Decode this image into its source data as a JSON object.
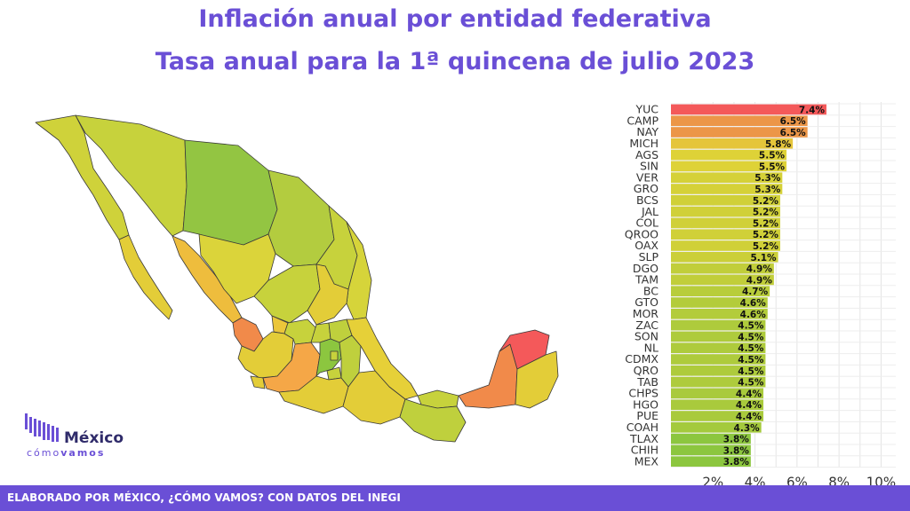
{
  "header": {
    "title": "Inflación anual por entidad federativa",
    "subtitle": "Tasa anual para la 1ª quincena de julio 2023"
  },
  "logo": {
    "name": "México",
    "sub_light": "cómo",
    "sub_bold": "vamos"
  },
  "footer": {
    "text": "ELABORADO POR MÉXICO, ¿CÓMO VAMOS? CON DATOS DEL INEGI"
  },
  "colors": {
    "accent": "#6a4fd6",
    "scale_low": "#8cc63f",
    "scale_mid": "#e3d336",
    "scale_high": "#f4595a"
  },
  "chart_data": {
    "type": "bar",
    "orientation": "horizontal",
    "categories": [
      "YUC",
      "CAMP",
      "NAY",
      "MICH",
      "AGS",
      "SIN",
      "VER",
      "GRO",
      "BCS",
      "JAL",
      "COL",
      "QROO",
      "OAX",
      "SLP",
      "DGO",
      "TAM",
      "BC",
      "GTO",
      "MOR",
      "ZAC",
      "SON",
      "NL",
      "CDMX",
      "QRO",
      "TAB",
      "CHPS",
      "HGO",
      "PUE",
      "COAH",
      "TLAX",
      "CHIH",
      "MEX"
    ],
    "values": [
      7.4,
      6.5,
      6.5,
      5.8,
      5.5,
      5.5,
      5.3,
      5.3,
      5.2,
      5.2,
      5.2,
      5.2,
      5.2,
      5.1,
      4.9,
      4.9,
      4.7,
      4.6,
      4.6,
      4.5,
      4.5,
      4.5,
      4.5,
      4.5,
      4.5,
      4.4,
      4.4,
      4.4,
      4.3,
      3.8,
      3.8,
      3.8
    ],
    "labels": [
      "7.4%",
      "6.5%",
      "6.5%",
      "5.8%",
      "5.5%",
      "5.5%",
      "5.3%",
      "5.3%",
      "5.2%",
      "5.2%",
      "5.2%",
      "5.2%",
      "5.2%",
      "5.1%",
      "4.9%",
      "4.9%",
      "4.7%",
      "4.6%",
      "4.6%",
      "4.5%",
      "4.5%",
      "4.5%",
      "4.5%",
      "4.5%",
      "4.5%",
      "4.4%",
      "4.4%",
      "4.4%",
      "4.3%",
      "3.8%",
      "3.8%",
      "3.8%"
    ],
    "xticks": [
      "2%",
      "4%",
      "6%",
      "8%",
      "10%"
    ],
    "xtick_values": [
      2,
      4,
      6,
      8,
      10
    ],
    "xlim": [
      0,
      10.7
    ],
    "grid": true
  }
}
